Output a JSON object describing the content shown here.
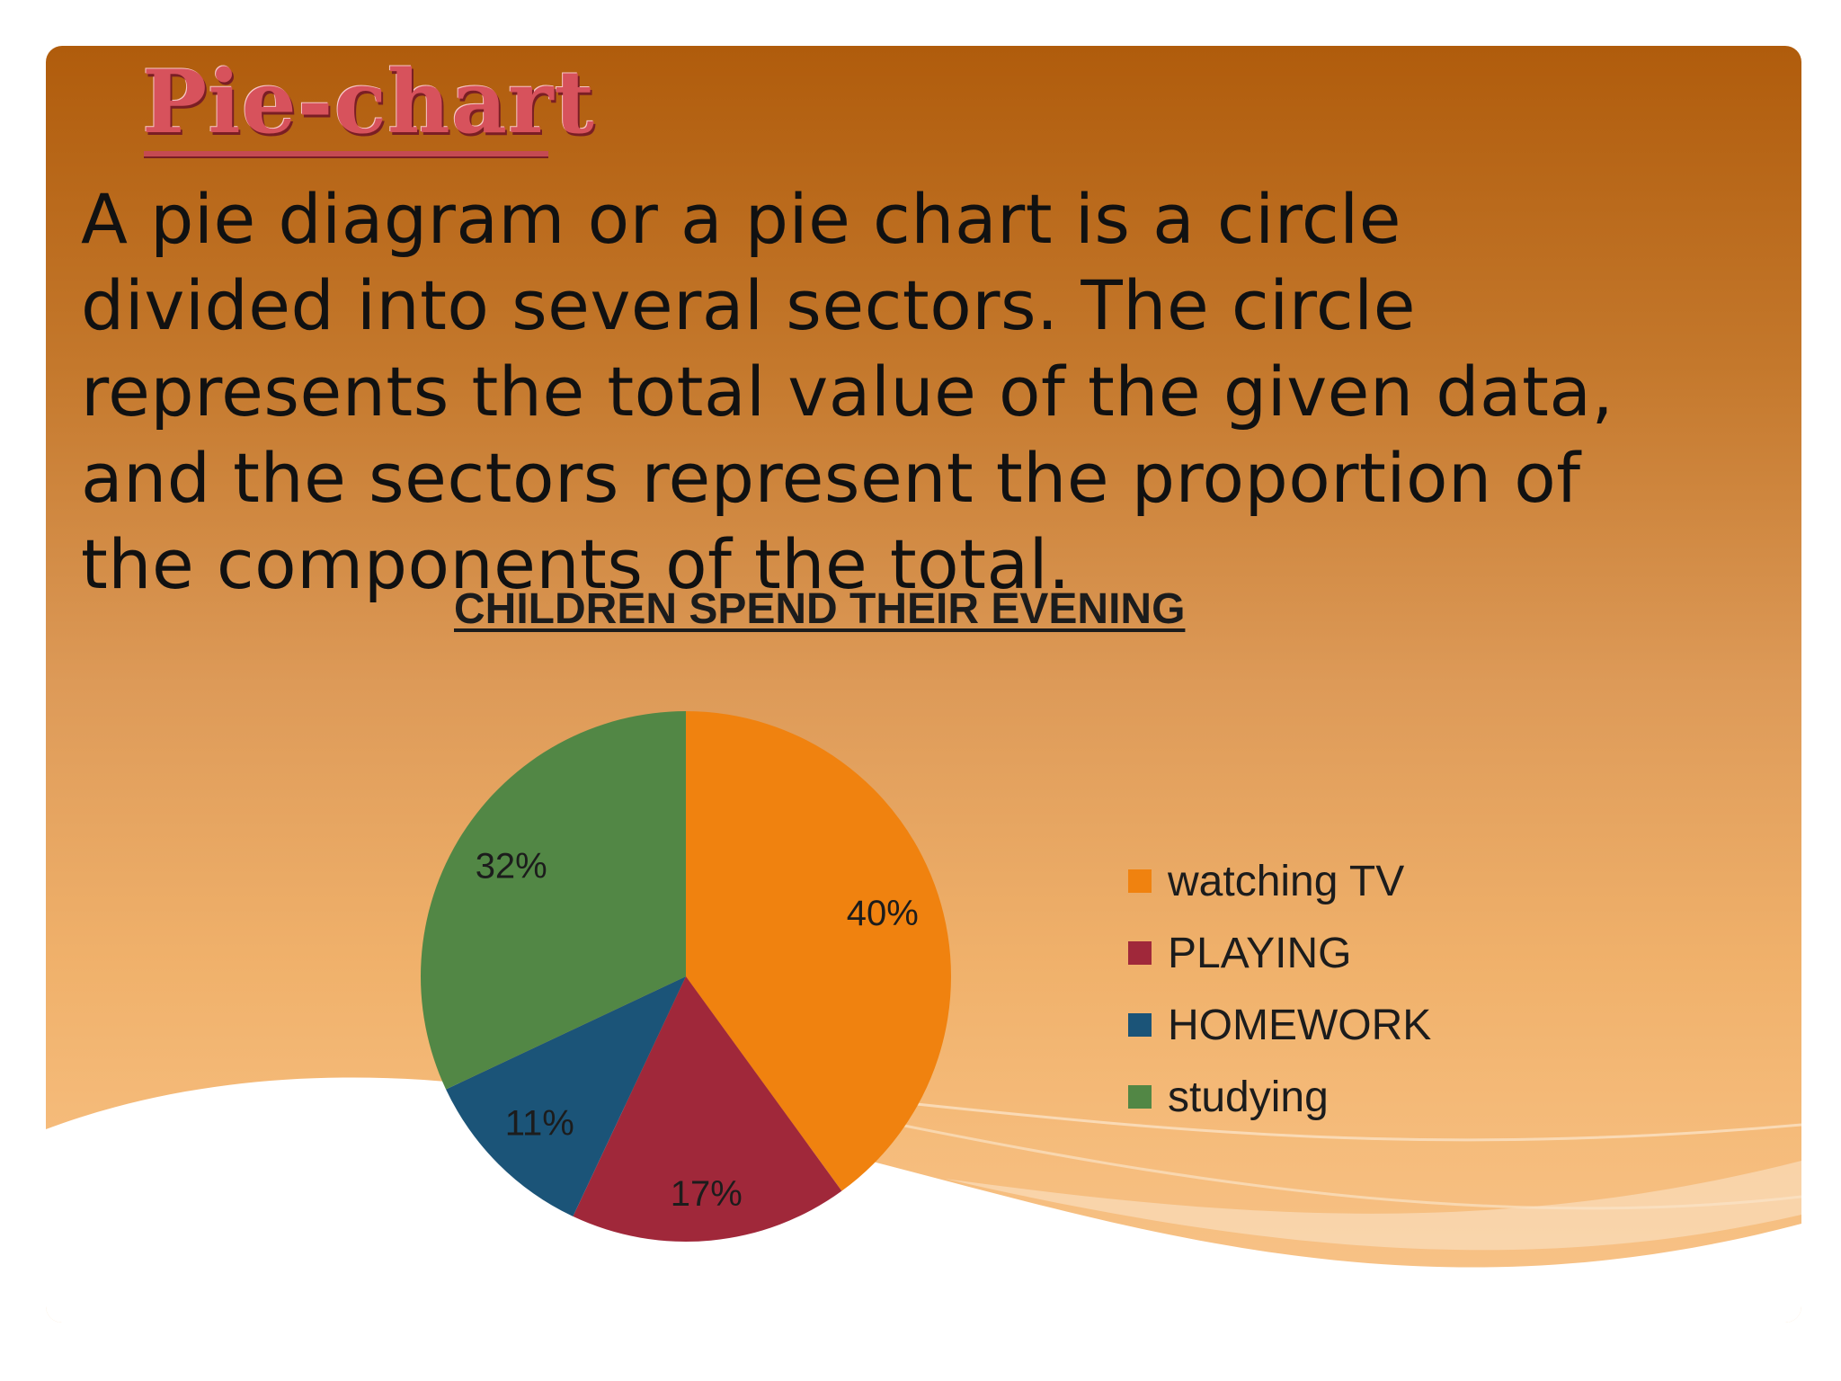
{
  "slide": {
    "title": "Pie-chart",
    "description": "A pie diagram or a pie chart is a circle divided into several sectors. The circle represents the total value of the given data, and the sectors represent the proportion of the components of the total."
  },
  "chart_data": {
    "type": "pie",
    "title": "CHILDREN SPEND THEIR EVENING",
    "categories": [
      "watching TV",
      "PLAYING",
      "HOMEWORK",
      "studying"
    ],
    "values": [
      40,
      17,
      11,
      32
    ],
    "labels": [
      "40%",
      "17%",
      "11%",
      "32%"
    ],
    "colors": [
      "#f0820f",
      "#a0283a",
      "#1b5478",
      "#528745"
    ],
    "legend_position": "right"
  }
}
